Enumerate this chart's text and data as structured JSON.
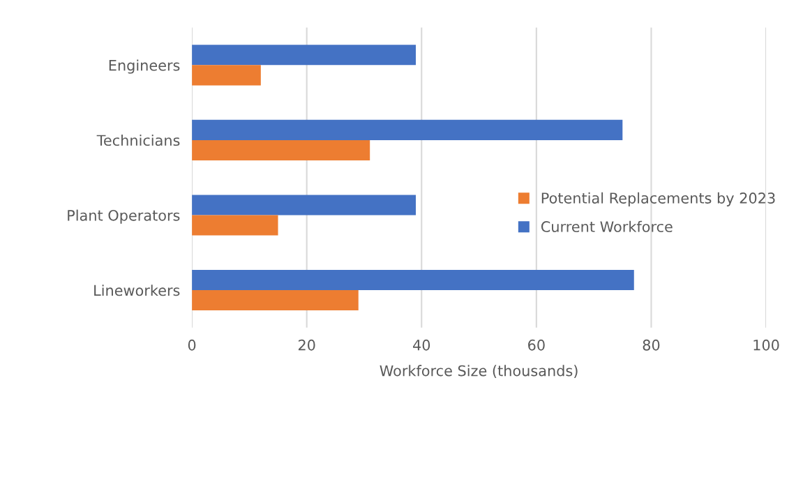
{
  "chart_data": {
    "type": "bar",
    "orientation": "horizontal",
    "xlabel": "Workforce Size (thousands)",
    "categories": [
      "Engineers",
      "Technicians",
      "Plant Operators",
      "Lineworkers"
    ],
    "series": [
      {
        "name": "Current Workforce",
        "color": "#4472c4",
        "values": [
          39,
          75,
          39,
          77
        ]
      },
      {
        "name": "Potential Replacements by 2023",
        "color": "#ed7d31",
        "values": [
          12,
          31,
          15,
          29
        ]
      }
    ],
    "xlim": [
      0,
      100
    ],
    "xticks": [
      0,
      20,
      40,
      60,
      80,
      100
    ],
    "grid": "x",
    "legend": "right"
  }
}
